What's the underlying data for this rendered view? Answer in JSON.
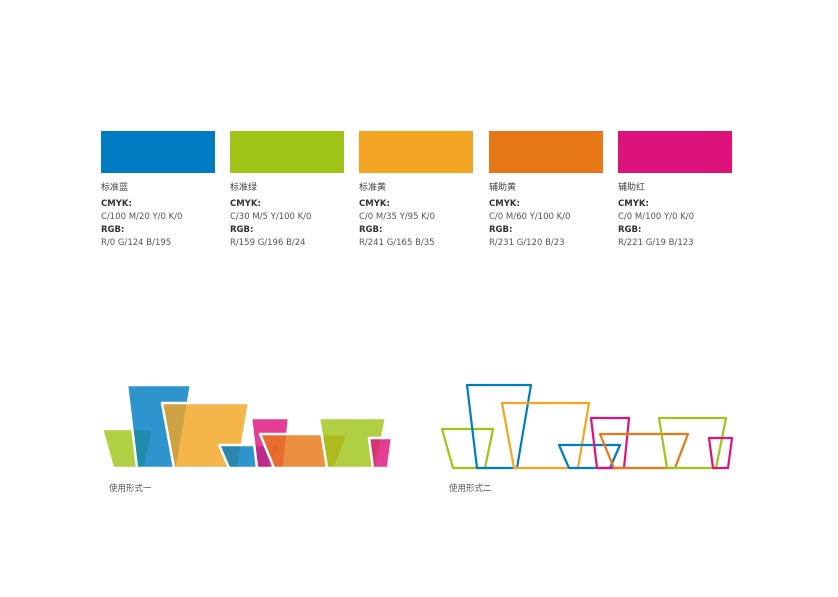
{
  "colors": [
    {
      "name": "标准蓝",
      "hex": "#007CC3",
      "cmyk_label": "CMYK:",
      "cmyk": "C/100  M/20  Y/0  K/0",
      "rgb_label": "RGB:",
      "rgb": "R/0  G/124  B/195"
    },
    {
      "name": "标准绿",
      "hex": "#9FC418",
      "cmyk_label": "CMYK:",
      "cmyk": "C/30  M/5  Y/100  K/0",
      "rgb_label": "RGB:",
      "rgb": "R/159  G/196  B/24"
    },
    {
      "name": "标准黄",
      "hex": "#F1A523",
      "cmyk_label": "CMYK:",
      "cmyk": "C/0  M/35  Y/95  K/0",
      "rgb_label": "RGB:",
      "rgb": "R/241  G/165  B/35"
    },
    {
      "name": "辅助黄",
      "hex": "#E77817",
      "cmyk_label": "CMYK:",
      "cmyk": "C/0  M/60  Y/100  K/0",
      "rgb_label": "RGB:",
      "rgb": "R/231  G/120  B/23"
    },
    {
      "name": "辅助红",
      "hex": "#DD137B",
      "cmyk_label": "CMYK:",
      "cmyk": "C/0  M/100  Y/0  K/0",
      "rgb_label": "RGB:",
      "rgb": "R/221  G/19  B/123"
    }
  ],
  "usage": {
    "form1_caption": "使用形式一",
    "form2_caption": "使用形式二"
  }
}
